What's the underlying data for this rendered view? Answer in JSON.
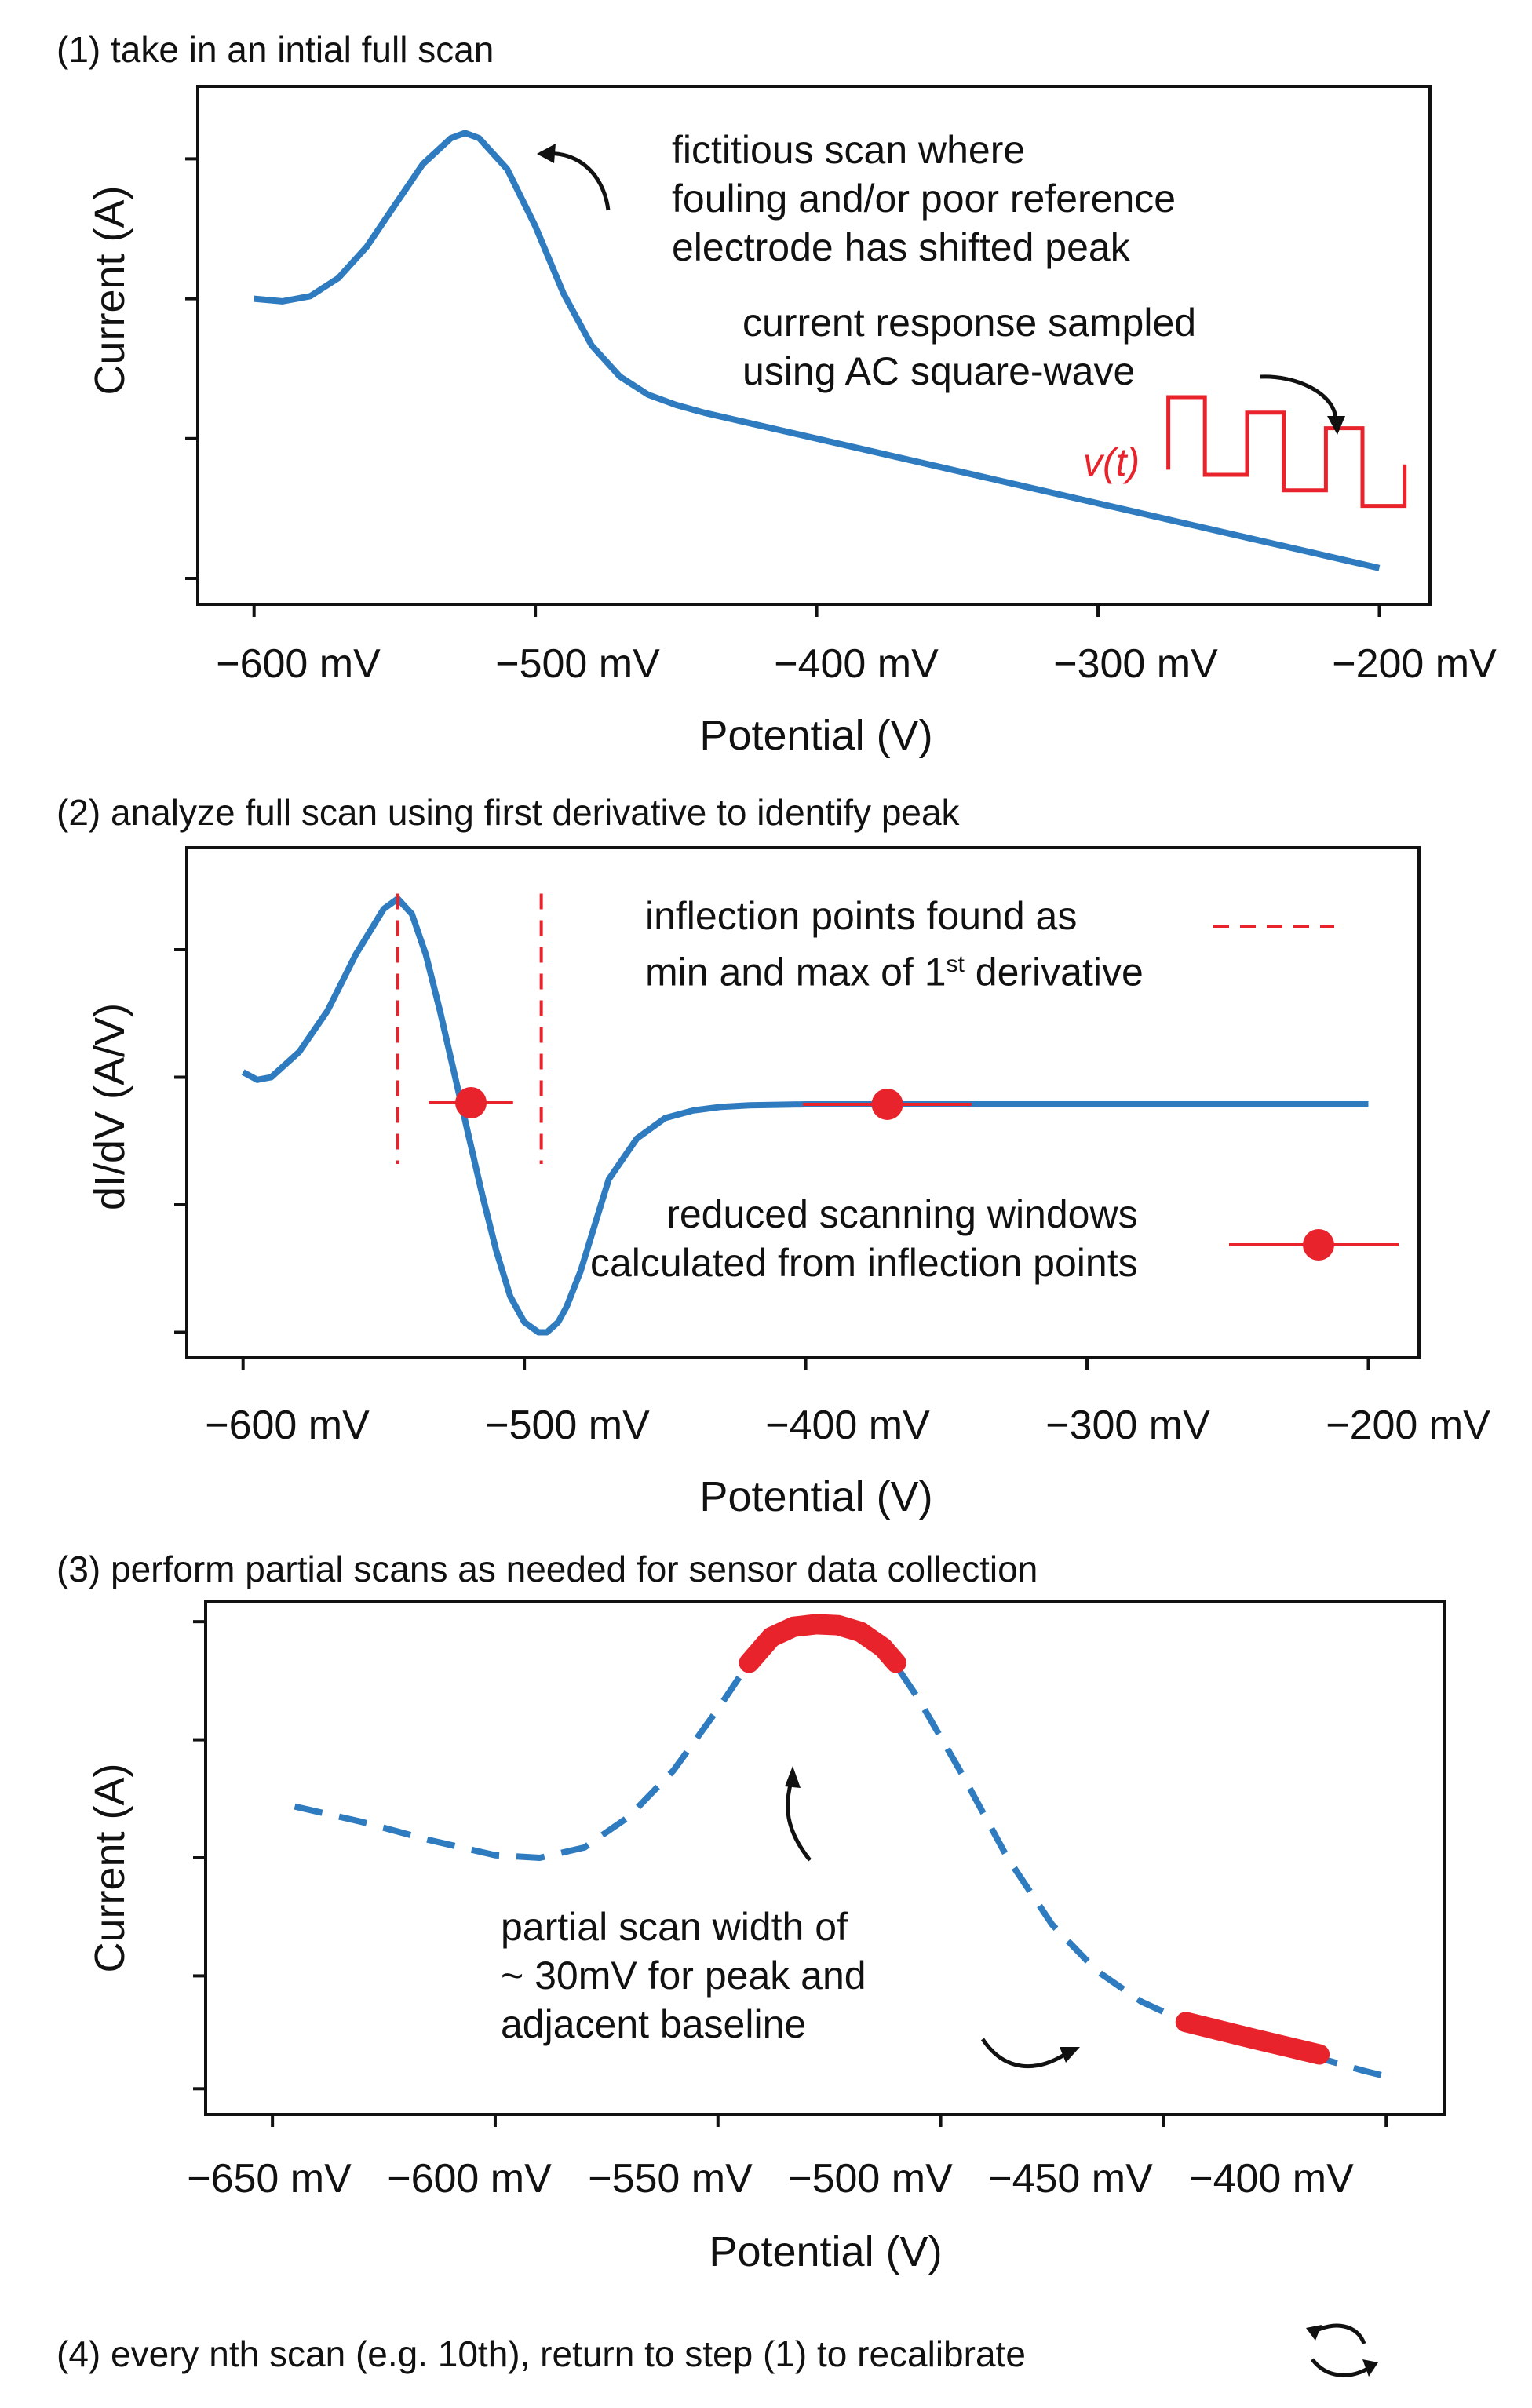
{
  "colors": {
    "curve": "#2f7bbf",
    "highlight": "#e8232b",
    "frame": "#111111",
    "background": "#ffffff"
  },
  "icons": [
    "curved-arrow-icon",
    "recalibrate-cycle-icon"
  ],
  "step4_caption": "(4) every nth scan (e.g. 10th), return to step (1) to recalibrate",
  "chart_data": [
    {
      "type": "line",
      "caption": "(1) take in an intial full scan",
      "xlabel": "Potential (V)",
      "ylabel": "Current (A)",
      "xlim": [
        -620,
        -182
      ],
      "ylim": [
        0,
        1
      ],
      "x_ticks": [
        -600,
        -500,
        -400,
        -300,
        -200
      ],
      "x_tick_labels": [
        "−600 mV",
        "−500 mV",
        "−400 mV",
        "−300 mV",
        "−200 mV"
      ],
      "y_ticks": [
        0.05,
        0.32,
        0.59,
        0.86
      ],
      "series": [
        {
          "name": "fictitious scan",
          "x": [
            -600,
            -590,
            -580,
            -570,
            -560,
            -550,
            -540,
            -530,
            -525,
            -520,
            -510,
            -500,
            -490,
            -480,
            -470,
            -460,
            -450,
            -440,
            -420,
            -400,
            -380,
            -360,
            -340,
            -320,
            -300,
            -280,
            -260,
            -240,
            -220,
            -200
          ],
          "y": [
            0.59,
            0.585,
            0.595,
            0.63,
            0.69,
            0.77,
            0.85,
            0.9,
            0.91,
            0.9,
            0.84,
            0.73,
            0.6,
            0.5,
            0.44,
            0.405,
            0.385,
            0.37,
            0.345,
            0.32,
            0.295,
            0.27,
            0.245,
            0.22,
            0.195,
            0.17,
            0.145,
            0.12,
            0.095,
            0.07
          ]
        },
        {
          "name": "v(t)",
          "style": "step",
          "x": [
            -275,
            -275,
            -262,
            -262,
            -247,
            -247,
            -234,
            -234,
            -219,
            -219,
            -206,
            -206,
            -191,
            -191
          ],
          "y": [
            0.26,
            0.4,
            0.4,
            0.25,
            0.25,
            0.37,
            0.37,
            0.22,
            0.22,
            0.34,
            0.34,
            0.19,
            0.19,
            0.27
          ]
        }
      ],
      "annotations": {
        "peak_note": "fictitious scan where\nfouling and/or poor reference\nelectrode has shifted peak",
        "sample_note": "current response sampled\nusing AC square-wave",
        "vt_label": "v(t)"
      }
    },
    {
      "type": "line",
      "caption": "(2) analyze full scan using first derivative to identify peak",
      "xlabel": "Potential (V)",
      "ylabel": "dI/dV (A/V)",
      "xlim": [
        -620,
        -182
      ],
      "ylim": [
        0,
        1
      ],
      "x_ticks": [
        -600,
        -500,
        -400,
        -300,
        -200
      ],
      "x_tick_labels": [
        "−600 mV",
        "−500 mV",
        "−400 mV",
        "−300 mV",
        "−200 mV"
      ],
      "y_ticks": [
        0.05,
        0.3,
        0.55,
        0.8
      ],
      "series": [
        {
          "name": "first derivative",
          "x": [
            -600,
            -595,
            -590,
            -580,
            -570,
            -560,
            -550,
            -545,
            -540,
            -535,
            -530,
            -525,
            -520,
            -515,
            -510,
            -505,
            -500,
            -495,
            -492,
            -488,
            -485,
            -480,
            -475,
            -470,
            -460,
            -450,
            -440,
            -430,
            -420,
            -400,
            -380,
            -360,
            -340,
            -300,
            -250,
            -200
          ],
          "y": [
            0.56,
            0.545,
            0.55,
            0.6,
            0.68,
            0.79,
            0.88,
            0.9,
            0.87,
            0.79,
            0.68,
            0.56,
            0.44,
            0.32,
            0.21,
            0.12,
            0.07,
            0.05,
            0.05,
            0.07,
            0.1,
            0.17,
            0.26,
            0.35,
            0.43,
            0.47,
            0.485,
            0.492,
            0.495,
            0.497,
            0.497,
            0.497,
            0.497,
            0.497,
            0.497,
            0.497
          ]
        }
      ],
      "inflection_lines_x": [
        -545,
        -494
      ],
      "inflection_line_ylim": [
        0.38,
        0.91
      ],
      "windows": [
        {
          "center": -519,
          "half_width": 15,
          "y": 0.5
        },
        {
          "center": -371,
          "half_width": 30,
          "y": 0.497
        }
      ],
      "legend_samples": {
        "dash_line": "top-right",
        "window_marker": "bottom-right"
      },
      "annotations": {
        "inflection_note_1": "inflection points found as",
        "inflection_note_2": "min and max of 1",
        "superscript": "st",
        "inflection_note_3": " derivative",
        "window_note": "reduced scanning windows\ncalculated from inflection points"
      }
    },
    {
      "type": "line",
      "caption": "(3) perform partial scans as needed for sensor data collection",
      "xlabel": "Potential (V)",
      "ylabel": "Current (A)",
      "xlim": [
        -665,
        -387
      ],
      "ylim": [
        0,
        1
      ],
      "x_ticks": [
        -650,
        -600,
        -550,
        -500,
        -450,
        -400
      ],
      "x_tick_labels": [
        "−650 mV",
        "−600 mV",
        "−550 mV",
        "−500 mV",
        "−450 mV",
        "−400 mV"
      ],
      "y_ticks": [
        0.05,
        0.27,
        0.5,
        0.73,
        0.96
      ],
      "series": [
        {
          "name": "full curve",
          "style": "dashed",
          "x": [
            -645,
            -630,
            -615,
            -600,
            -590,
            -580,
            -570,
            -560,
            -550,
            -543,
            -535,
            -528,
            -520,
            -512,
            -505,
            -495,
            -485,
            -475,
            -465,
            -455,
            -445,
            -435,
            -425,
            -415,
            -405,
            -398
          ],
          "y": [
            0.6,
            0.57,
            0.535,
            0.505,
            0.5,
            0.52,
            0.58,
            0.67,
            0.79,
            0.88,
            0.94,
            0.955,
            0.95,
            0.9,
            0.81,
            0.66,
            0.5,
            0.37,
            0.28,
            0.22,
            0.18,
            0.16,
            0.135,
            0.11,
            0.085,
            0.07
          ]
        },
        {
          "name": "peak window",
          "style": "highlight",
          "x": [
            -543,
            -538,
            -533,
            -528,
            -523,
            -518,
            -513,
            -510
          ],
          "y": [
            0.88,
            0.93,
            0.95,
            0.955,
            0.953,
            0.94,
            0.91,
            0.88
          ]
        },
        {
          "name": "baseline window",
          "style": "highlight",
          "x": [
            -445,
            -430,
            -415
          ],
          "y": [
            0.18,
            0.148,
            0.117
          ]
        }
      ],
      "annotations": {
        "width_note": "partial scan width of\n~ 30mV for peak and\nadjacent baseline"
      }
    }
  ]
}
